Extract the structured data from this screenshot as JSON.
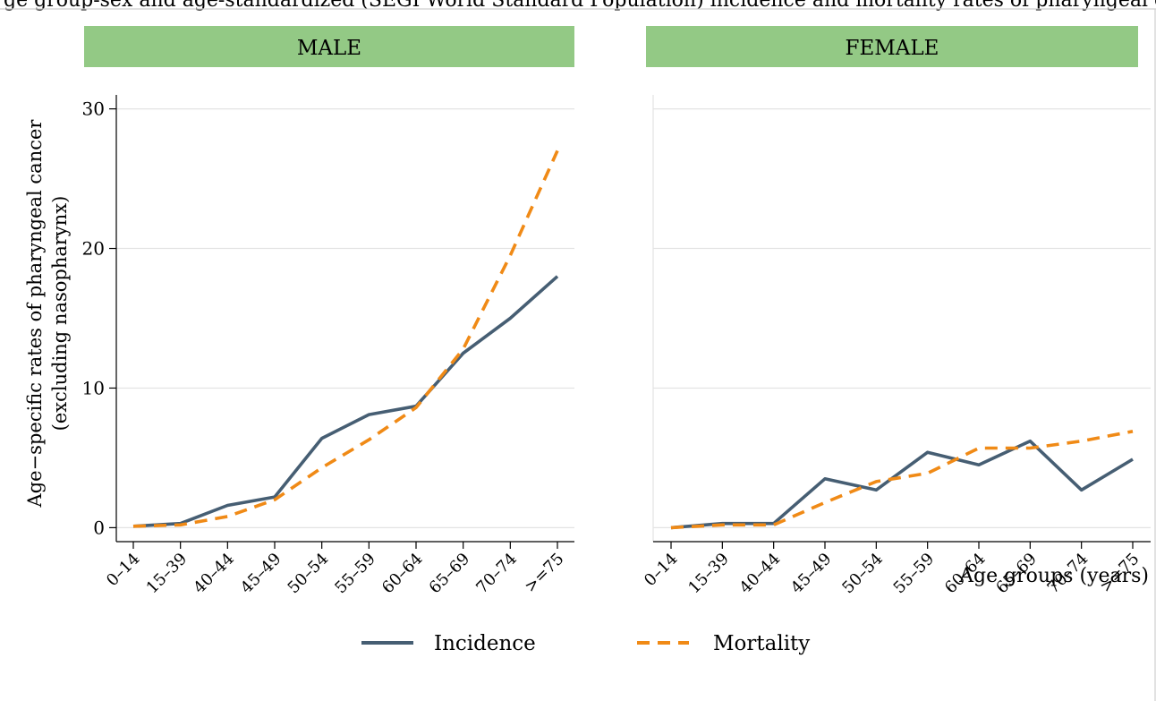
{
  "figure": {
    "title_fragment": "ge group-sex and age-standardized (SEGI World Standard Population) incidence and mortality rates of pharyngeal cancer (excluding nasopharynx) in Shanghai",
    "background": "#ffffff",
    "panel_header_color": "#93c985",
    "incidence_color": "#465e73",
    "mortality_color": "#f08a16"
  },
  "chart_data": {
    "type": "line",
    "categories": [
      "0–14",
      "15–39",
      "40–44",
      "45–49",
      "50–54",
      "55–59",
      "60–64",
      "65–69",
      "70–74",
      ">=75"
    ],
    "ylabel_line1": "Age−specific rates of pharyngeal  cancer",
    "ylabel_line2": "(excluding nasopharynx)",
    "xlabel": "Age groups (years)",
    "ylim": [
      -1,
      31
    ],
    "yticks": [
      0,
      10,
      20,
      30
    ],
    "grid": true,
    "legend_position": "bottom",
    "legend": [
      "Incidence",
      "Mortality"
    ],
    "panels": [
      {
        "title": "MALE",
        "series": [
          {
            "name": "Incidence",
            "values": [
              0.1,
              0.3,
              1.6,
              2.2,
              6.4,
              8.1,
              8.7,
              12.5,
              15.0,
              18.0
            ]
          },
          {
            "name": "Mortality",
            "values": [
              0.1,
              0.2,
              0.8,
              2.0,
              4.3,
              6.3,
              8.6,
              12.8,
              19.5,
              27.0
            ]
          }
        ]
      },
      {
        "title": "FEMALE",
        "series": [
          {
            "name": "Incidence",
            "values": [
              0.0,
              0.3,
              0.3,
              3.5,
              2.7,
              5.4,
              4.5,
              6.2,
              2.7,
              4.9
            ]
          },
          {
            "name": "Mortality",
            "values": [
              0.0,
              0.2,
              0.2,
              1.8,
              3.3,
              3.9,
              5.7,
              5.7,
              6.2,
              6.9
            ]
          }
        ]
      }
    ]
  }
}
